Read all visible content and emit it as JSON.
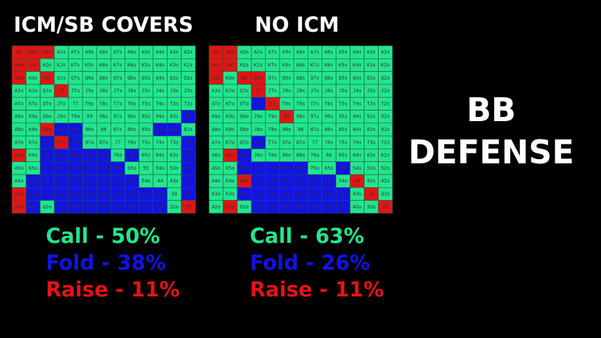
{
  "left": {
    "title": "ICM/SB COVERS",
    "actions": [
      "rrrgggggggggg",
      "rrggggggggggg",
      "rgrgggggggggg",
      "gggrggggggggg",
      "ggggggggggggg",
      "ggggggggggggb",
      "ggrbbgggggbbg",
      "ggbrbgggggggb",
      "rgbbbbbgbgggb",
      "ggbbbbbbggggb",
      "gbbbbbbbbgggb",
      "rbbbbbbbbbbgb",
      "rbgbbbbbbbbgr"
    ],
    "stats": [
      "Call - 50%",
      "Fold - 38%",
      "Raise - 11%"
    ]
  },
  "right": {
    "title": "NO ICM",
    "actions": [
      "rrggggggggggg",
      "rrggggggggggg",
      "rgrrggggggggg",
      "gggrggggggggg",
      "gggbrgggggggg",
      "gggggrggggggg",
      "ggggggggggggg",
      "gggbggggggggg",
      "grbgggggggggg",
      "ggbbbbbggbggg",
      "ggrbbbbbbgrgg",
      "ggbbbbbbbbgrg",
      "grgbbbbbbbggr"
    ],
    "stats": [
      "Call - 63%",
      "Fold - 26%",
      "Raise - 11%"
    ]
  },
  "side_title": [
    "BB",
    "DEFENSE"
  ],
  "colors": {
    "g": "#22e58e",
    "b": "#1212e6",
    "r": "#e31414"
  },
  "stat_colors": [
    "#22e58e",
    "#1212e6",
    "#e31414"
  ],
  "hands": [
    [
      "AA",
      "AKs",
      "AQs",
      "AJs",
      "ATs",
      "A9s",
      "A8s",
      "A7s",
      "A6s",
      "A5s",
      "A4s",
      "A3s",
      "A2s"
    ],
    [
      "AKo",
      "KK",
      "KQs",
      "KJs",
      "KTs",
      "K9s",
      "K8s",
      "K7s",
      "K6s",
      "K5s",
      "K4s",
      "K3s",
      "K2s"
    ],
    [
      "AQo",
      "KQo",
      "QQ",
      "QJs",
      "QTs",
      "Q9s",
      "Q8s",
      "Q7s",
      "Q6s",
      "Q5s",
      "Q4s",
      "Q3s",
      "Q2s"
    ],
    [
      "AJo",
      "KJo",
      "QJo",
      "JJ",
      "JTs",
      "J9s",
      "J8s",
      "J7s",
      "J6s",
      "J5s",
      "J4s",
      "J3s",
      "J2s"
    ],
    [
      "ATo",
      "KTo",
      "QTo",
      "JTo",
      "TT",
      "T9s",
      "T8s",
      "T7s",
      "T6s",
      "T5s",
      "T4s",
      "T3s",
      "T2s"
    ],
    [
      "A9o",
      "K9o",
      "Q9o",
      "J9o",
      "T9o",
      "99",
      "98s",
      "97s",
      "96s",
      "95s",
      "94s",
      "93s",
      "92s"
    ],
    [
      "A8o",
      "K8o",
      "Q8o",
      "J8o",
      "T8o",
      "98o",
      "88",
      "87s",
      "86s",
      "85s",
      "84s",
      "83s",
      "82s"
    ],
    [
      "A7o",
      "K7o",
      "Q7o",
      "J7o",
      "T7o",
      "97o",
      "87o",
      "77",
      "76s",
      "75s",
      "74s",
      "73s",
      "72s"
    ],
    [
      "A6o",
      "K6o",
      "Q6o",
      "J6o",
      "T6o",
      "96o",
      "86o",
      "76o",
      "66",
      "65s",
      "64s",
      "63s",
      "62s"
    ],
    [
      "A5o",
      "K5o",
      "Q5o",
      "J5o",
      "T5o",
      "95o",
      "85o",
      "75o",
      "65o",
      "55",
      "54s",
      "53s",
      "52s"
    ],
    [
      "A4o",
      "K4o",
      "Q4o",
      "J4o",
      "T4o",
      "94o",
      "84o",
      "74o",
      "64o",
      "54o",
      "44",
      "43s",
      "42s"
    ],
    [
      "A3o",
      "K3o",
      "Q3o",
      "J3o",
      "T3o",
      "93o",
      "83o",
      "73o",
      "63o",
      "53o",
      "43o",
      "33",
      "32s"
    ],
    [
      "A2o",
      "K2o",
      "Q2o",
      "J2o",
      "T2o",
      "92o",
      "82o",
      "72o",
      "62o",
      "52o",
      "42o",
      "32o",
      "22"
    ]
  ]
}
